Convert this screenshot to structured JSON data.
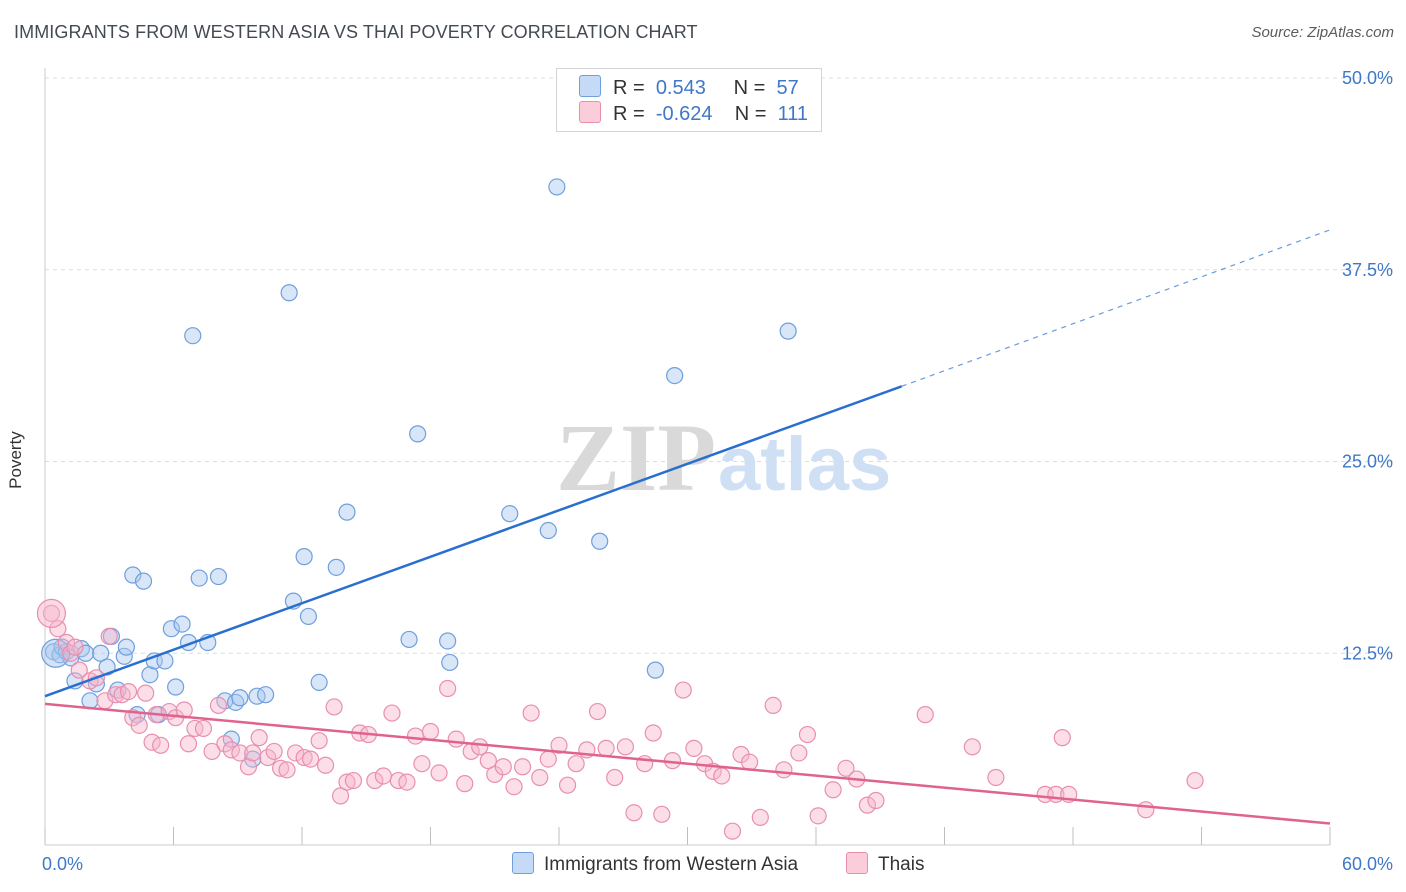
{
  "title": "IMMIGRANTS FROM WESTERN ASIA VS THAI POVERTY CORRELATION CHART",
  "source": "Source: ZipAtlas.com",
  "watermark": {
    "zip": "ZIP",
    "atlas": "atlas"
  },
  "colors": {
    "blue_fill": "#a9c8f0",
    "blue_stroke": "#6f9fdc",
    "blue_line": "#2a6fcf",
    "pink_fill": "#f7b6cb",
    "pink_stroke": "#e98fae",
    "pink_line": "#e0628e",
    "grid": "#dcdcdc",
    "tick_label": "#3f78c7"
  },
  "legend": {
    "rows": [
      {
        "r_label": "R =",
        "r_value": "0.543",
        "n_label": "N =",
        "n_value": "57"
      },
      {
        "r_label": "R =",
        "r_value": "-0.624",
        "n_label": "N =",
        "n_value": "111"
      }
    ]
  },
  "chart_data": {
    "type": "scatter",
    "xlabel": "",
    "ylabel": "Poverty",
    "xlim": [
      0,
      60
    ],
    "ylim": [
      0,
      50
    ],
    "x_tick_labels": [
      "0.0%",
      "60.0%"
    ],
    "y_ticks": [
      12.5,
      25.0,
      37.5,
      50.0
    ],
    "y_tick_labels": [
      "12.5%",
      "25.0%",
      "37.5%",
      "50.0%"
    ],
    "grid": true,
    "legend_position": "bottom-center",
    "series": [
      {
        "name": "Immigrants from Western Asia",
        "color": "blue",
        "trend": {
          "x0": 0,
          "y0": 9.7,
          "x1": 40,
          "y1": 29.9,
          "dash_to_x": 60,
          "dash_to_y": 40.1
        },
        "points": [
          [
            0.4,
            12.6
          ],
          [
            0.7,
            12.4
          ],
          [
            0.8,
            12.9
          ],
          [
            1.0,
            12.6
          ],
          [
            1.2,
            12.2
          ],
          [
            1.4,
            10.7
          ],
          [
            1.7,
            12.8
          ],
          [
            1.9,
            12.5
          ],
          [
            2.1,
            9.4
          ],
          [
            2.4,
            10.5
          ],
          [
            2.6,
            12.5
          ],
          [
            2.9,
            11.6
          ],
          [
            3.1,
            13.6
          ],
          [
            3.4,
            10.1
          ],
          [
            3.7,
            12.3
          ],
          [
            3.8,
            12.9
          ],
          [
            4.1,
            17.6
          ],
          [
            4.3,
            8.5
          ],
          [
            4.6,
            17.2
          ],
          [
            4.9,
            11.1
          ],
          [
            5.1,
            12.0
          ],
          [
            5.3,
            8.5
          ],
          [
            5.6,
            12.0
          ],
          [
            5.9,
            14.1
          ],
          [
            6.1,
            10.3
          ],
          [
            6.4,
            14.4
          ],
          [
            6.7,
            13.2
          ],
          [
            6.9,
            33.2
          ],
          [
            7.2,
            17.4
          ],
          [
            7.6,
            13.2
          ],
          [
            8.1,
            17.5
          ],
          [
            8.4,
            9.4
          ],
          [
            8.7,
            6.9
          ],
          [
            8.9,
            9.3
          ],
          [
            9.1,
            9.6
          ],
          [
            9.7,
            5.6
          ],
          [
            9.9,
            9.7
          ],
          [
            10.3,
            9.8
          ],
          [
            11.4,
            36.0
          ],
          [
            11.6,
            15.9
          ],
          [
            12.1,
            18.8
          ],
          [
            12.3,
            14.9
          ],
          [
            12.8,
            10.6
          ],
          [
            13.6,
            18.1
          ],
          [
            14.1,
            21.7
          ],
          [
            17.0,
            13.4
          ],
          [
            17.4,
            26.8
          ],
          [
            18.8,
            13.3
          ],
          [
            18.9,
            11.9
          ],
          [
            21.7,
            21.6
          ],
          [
            23.5,
            20.5
          ],
          [
            23.9,
            42.9
          ],
          [
            25.9,
            19.8
          ],
          [
            28.5,
            11.4
          ],
          [
            29.4,
            30.6
          ],
          [
            34.7,
            33.5
          ]
        ],
        "big_point": [
          0.5,
          12.5
        ]
      },
      {
        "name": "Thais",
        "color": "pink",
        "trend": {
          "x0": 0,
          "y0": 9.2,
          "x1": 60,
          "y1": 1.4
        },
        "points": [
          [
            0.3,
            15.1
          ],
          [
            0.6,
            14.1
          ],
          [
            1.0,
            13.2
          ],
          [
            1.2,
            12.5
          ],
          [
            1.4,
            12.9
          ],
          [
            1.6,
            11.4
          ],
          [
            2.1,
            10.7
          ],
          [
            2.4,
            10.9
          ],
          [
            2.8,
            9.4
          ],
          [
            3.0,
            13.6
          ],
          [
            3.3,
            9.8
          ],
          [
            3.6,
            9.8
          ],
          [
            3.9,
            10.0
          ],
          [
            4.1,
            8.3
          ],
          [
            4.4,
            7.8
          ],
          [
            4.7,
            9.9
          ],
          [
            5.0,
            6.7
          ],
          [
            5.2,
            8.5
          ],
          [
            5.4,
            6.5
          ],
          [
            5.8,
            8.7
          ],
          [
            6.1,
            8.3
          ],
          [
            6.5,
            8.8
          ],
          [
            6.7,
            6.6
          ],
          [
            7.0,
            7.6
          ],
          [
            7.4,
            7.6
          ],
          [
            7.8,
            6.1
          ],
          [
            8.1,
            9.1
          ],
          [
            8.4,
            6.6
          ],
          [
            8.7,
            6.2
          ],
          [
            9.1,
            6.0
          ],
          [
            9.5,
            5.1
          ],
          [
            9.7,
            6.0
          ],
          [
            10.0,
            7.0
          ],
          [
            10.4,
            5.7
          ],
          [
            10.7,
            6.1
          ],
          [
            11.0,
            5.0
          ],
          [
            11.3,
            4.9
          ],
          [
            11.7,
            6.0
          ],
          [
            12.1,
            5.7
          ],
          [
            12.4,
            5.6
          ],
          [
            12.8,
            6.8
          ],
          [
            13.1,
            5.2
          ],
          [
            13.5,
            9.0
          ],
          [
            13.8,
            3.2
          ],
          [
            14.1,
            4.1
          ],
          [
            14.4,
            4.2
          ],
          [
            14.7,
            7.3
          ],
          [
            15.1,
            7.2
          ],
          [
            15.4,
            4.2
          ],
          [
            15.8,
            4.5
          ],
          [
            16.2,
            8.6
          ],
          [
            16.5,
            4.2
          ],
          [
            16.9,
            4.1
          ],
          [
            17.3,
            7.1
          ],
          [
            17.6,
            5.3
          ],
          [
            18.0,
            7.4
          ],
          [
            18.4,
            4.7
          ],
          [
            18.8,
            10.2
          ],
          [
            19.2,
            6.9
          ],
          [
            19.6,
            4.0
          ],
          [
            19.9,
            6.1
          ],
          [
            20.3,
            6.4
          ],
          [
            20.7,
            5.5
          ],
          [
            21.0,
            4.6
          ],
          [
            21.4,
            5.1
          ],
          [
            21.9,
            3.8
          ],
          [
            22.3,
            5.1
          ],
          [
            22.7,
            8.6
          ],
          [
            23.1,
            4.4
          ],
          [
            23.5,
            5.6
          ],
          [
            24.0,
            6.5
          ],
          [
            24.4,
            3.9
          ],
          [
            24.8,
            5.3
          ],
          [
            25.3,
            6.2
          ],
          [
            25.8,
            8.7
          ],
          [
            26.2,
            6.3
          ],
          [
            26.6,
            4.4
          ],
          [
            27.1,
            6.4
          ],
          [
            27.5,
            2.1
          ],
          [
            28.0,
            5.3
          ],
          [
            28.4,
            7.3
          ],
          [
            28.8,
            2.0
          ],
          [
            29.3,
            5.5
          ],
          [
            29.8,
            10.1
          ],
          [
            30.3,
            6.3
          ],
          [
            30.8,
            5.3
          ],
          [
            31.2,
            4.8
          ],
          [
            31.6,
            4.5
          ],
          [
            32.1,
            0.9
          ],
          [
            32.5,
            5.9
          ],
          [
            32.9,
            5.4
          ],
          [
            33.4,
            1.8
          ],
          [
            34.0,
            9.1
          ],
          [
            34.5,
            4.9
          ],
          [
            35.2,
            6.0
          ],
          [
            35.6,
            7.2
          ],
          [
            36.1,
            1.9
          ],
          [
            36.8,
            3.6
          ],
          [
            37.4,
            5.0
          ],
          [
            37.9,
            4.3
          ],
          [
            38.4,
            2.6
          ],
          [
            38.8,
            2.9
          ],
          [
            41.1,
            8.5
          ],
          [
            43.3,
            6.4
          ],
          [
            44.4,
            4.4
          ],
          [
            46.7,
            3.3
          ],
          [
            47.2,
            3.3
          ],
          [
            47.5,
            7.0
          ],
          [
            47.8,
            3.3
          ],
          [
            51.4,
            2.3
          ],
          [
            53.7,
            4.2
          ]
        ],
        "big_point": [
          0.3,
          15.1
        ]
      }
    ]
  },
  "bottom_legend": {
    "items": [
      {
        "label": "Immigrants from Western Asia"
      },
      {
        "label": "Thais"
      }
    ]
  }
}
